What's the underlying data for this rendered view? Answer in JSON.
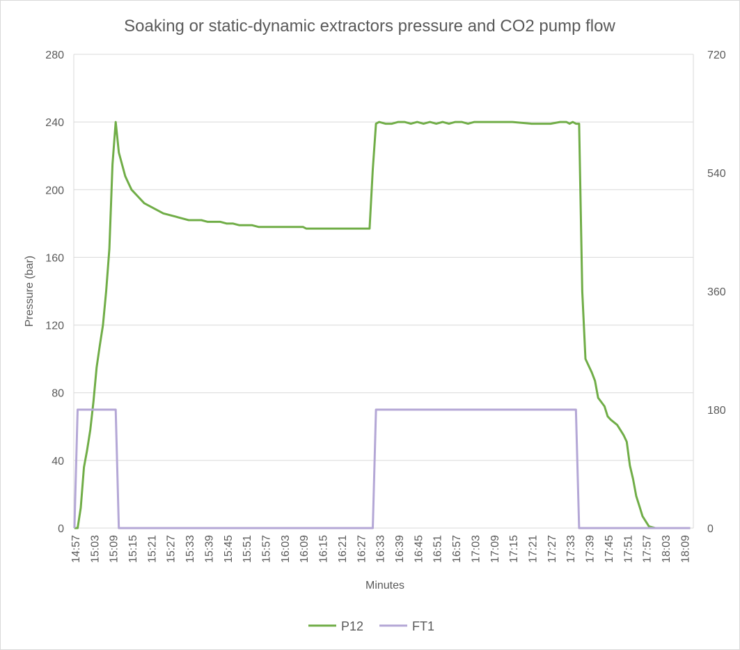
{
  "chart_data": {
    "type": "line",
    "title": "Soaking or static-dynamic extractors pressure and CO2 pump flow",
    "xlabel": "Minutes",
    "ylabel": "Pressure (bar)",
    "ylabel_right": "",
    "ylim": [
      0,
      280
    ],
    "yticks": [
      0,
      40,
      80,
      120,
      160,
      200,
      240,
      280
    ],
    "ylim_right": [
      0,
      720
    ],
    "yticks_right": [
      0,
      180,
      360,
      540,
      720
    ],
    "x_tick_labels": [
      "14:57",
      "15:03",
      "15:09",
      "15:15",
      "15:21",
      "15:27",
      "15:33",
      "15:39",
      "15:45",
      "15:51",
      "15:57",
      "16:03",
      "16:09",
      "16:15",
      "16:21",
      "16:27",
      "16:33",
      "16:39",
      "16:45",
      "16:51",
      "16:57",
      "17:03",
      "17:09",
      "17:15",
      "17:21",
      "17:27",
      "17:33",
      "17:39",
      "17:45",
      "17:51",
      "17:57",
      "18:03",
      "18:09"
    ],
    "grid": "horizontal",
    "legend_position": "bottom",
    "series": [
      {
        "name": "P12",
        "color": "#70ad47",
        "axis": "left",
        "x": [
          "14:57",
          "14:58",
          "14:59",
          "15:00",
          "15:01",
          "15:02",
          "15:03",
          "15:04",
          "15:05",
          "15:06",
          "15:07",
          "15:08",
          "15:09",
          "15:10",
          "15:11",
          "15:12",
          "15:13",
          "15:14",
          "15:15",
          "15:17",
          "15:19",
          "15:21",
          "15:23",
          "15:25",
          "15:27",
          "15:29",
          "15:31",
          "15:33",
          "15:35",
          "15:37",
          "15:39",
          "15:41",
          "15:43",
          "15:45",
          "15:47",
          "15:49",
          "15:51",
          "15:53",
          "15:55",
          "15:57",
          "16:01",
          "16:05",
          "16:09",
          "16:10",
          "16:15",
          "16:21",
          "16:27",
          "16:30",
          "16:31",
          "16:32",
          "16:33",
          "16:35",
          "16:37",
          "16:39",
          "16:41",
          "16:43",
          "16:45",
          "16:47",
          "16:49",
          "16:51",
          "16:53",
          "16:55",
          "16:57",
          "16:59",
          "17:01",
          "17:03",
          "17:09",
          "17:15",
          "17:21",
          "17:27",
          "17:30",
          "17:32",
          "17:33",
          "17:34",
          "17:35",
          "17:36",
          "17:37",
          "17:38",
          "17:40",
          "17:41",
          "17:42",
          "17:44",
          "17:45",
          "17:46",
          "17:48",
          "17:49",
          "17:50",
          "17:51",
          "17:52",
          "17:53",
          "17:54",
          "17:55",
          "17:56",
          "17:57",
          "17:58",
          "18:00",
          "18:03",
          "18:06",
          "18:09",
          "18:11"
        ],
        "values": [
          0,
          0,
          12,
          36,
          46,
          58,
          75,
          95,
          108,
          120,
          140,
          165,
          215,
          240,
          222,
          215,
          208,
          204,
          200,
          196,
          192,
          190,
          188,
          186,
          185,
          184,
          183,
          182,
          182,
          182,
          181,
          181,
          181,
          180,
          180,
          179,
          179,
          179,
          178,
          178,
          178,
          178,
          178,
          177,
          177,
          177,
          177,
          177,
          212,
          239,
          240,
          239,
          239,
          240,
          240,
          239,
          240,
          239,
          240,
          239,
          240,
          239,
          240,
          240,
          239,
          240,
          240,
          240,
          239,
          239,
          240,
          240,
          239,
          240,
          239,
          239,
          140,
          100,
          92,
          87,
          77,
          72,
          66,
          64,
          61,
          58,
          55,
          51,
          37,
          29,
          19,
          13,
          7,
          4,
          1,
          0,
          0,
          0,
          0,
          0
        ]
      },
      {
        "name": "FT1",
        "color": "#b4a7d6",
        "axis": "right",
        "x": [
          "14:57",
          "14:58",
          "15:00",
          "15:03",
          "15:06",
          "15:09",
          "15:10",
          "15:11",
          "15:12",
          "16:30",
          "16:31",
          "16:32",
          "16:33",
          "16:40",
          "16:50",
          "17:00",
          "17:10",
          "17:20",
          "17:30",
          "17:34",
          "17:35",
          "17:36",
          "18:11"
        ],
        "values": [
          0,
          180,
          180,
          180,
          180,
          180,
          180,
          0,
          0,
          0,
          0,
          180,
          180,
          180,
          180,
          180,
          180,
          180,
          180,
          180,
          180,
          0,
          0
        ]
      }
    ]
  }
}
